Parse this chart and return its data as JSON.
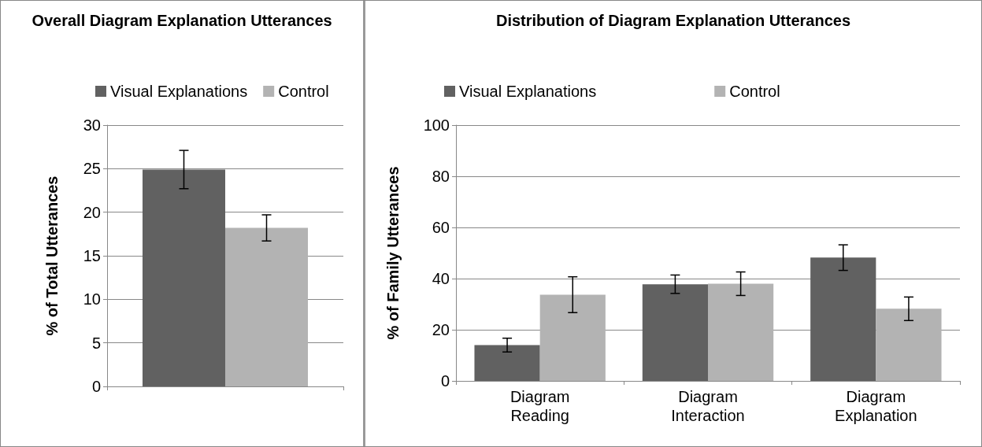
{
  "chart_data": [
    {
      "type": "bar",
      "title": "Overall Diagram Explanation Utterances",
      "ylabel": "% of Total Utterances",
      "categories": [
        null
      ],
      "series": [
        {
          "name": "Visual Explanations",
          "color": "#616161",
          "values": [
            24.9
          ],
          "errors": [
            2.2
          ]
        },
        {
          "name": "Control",
          "color": "#b3b3b3",
          "values": [
            18.2
          ],
          "errors": [
            1.5
          ]
        }
      ],
      "ylim": [
        0,
        30
      ],
      "yticks": [
        0,
        5,
        10,
        15,
        20,
        25,
        30
      ],
      "grid": "y",
      "legend": "top"
    },
    {
      "type": "bar",
      "title": "Distribution of Diagram Explanation Utterances",
      "ylabel": "% of Family Utterances",
      "categories": [
        "Diagram\nReading",
        "Diagram\nInteraction",
        "Diagram\nExplanation"
      ],
      "series": [
        {
          "name": "Visual Explanations",
          "color": "#616161",
          "values": [
            14,
            37.8,
            48.2
          ],
          "errors": [
            2.7,
            3.6,
            5
          ]
        },
        {
          "name": "Control",
          "color": "#b3b3b3",
          "values": [
            33.7,
            38,
            28.2
          ],
          "errors": [
            7,
            4.6,
            4.6
          ]
        }
      ],
      "ylim": [
        0,
        100
      ],
      "yticks": [
        0,
        20,
        40,
        60,
        80,
        100
      ],
      "grid": "y",
      "legend": "top"
    }
  ]
}
